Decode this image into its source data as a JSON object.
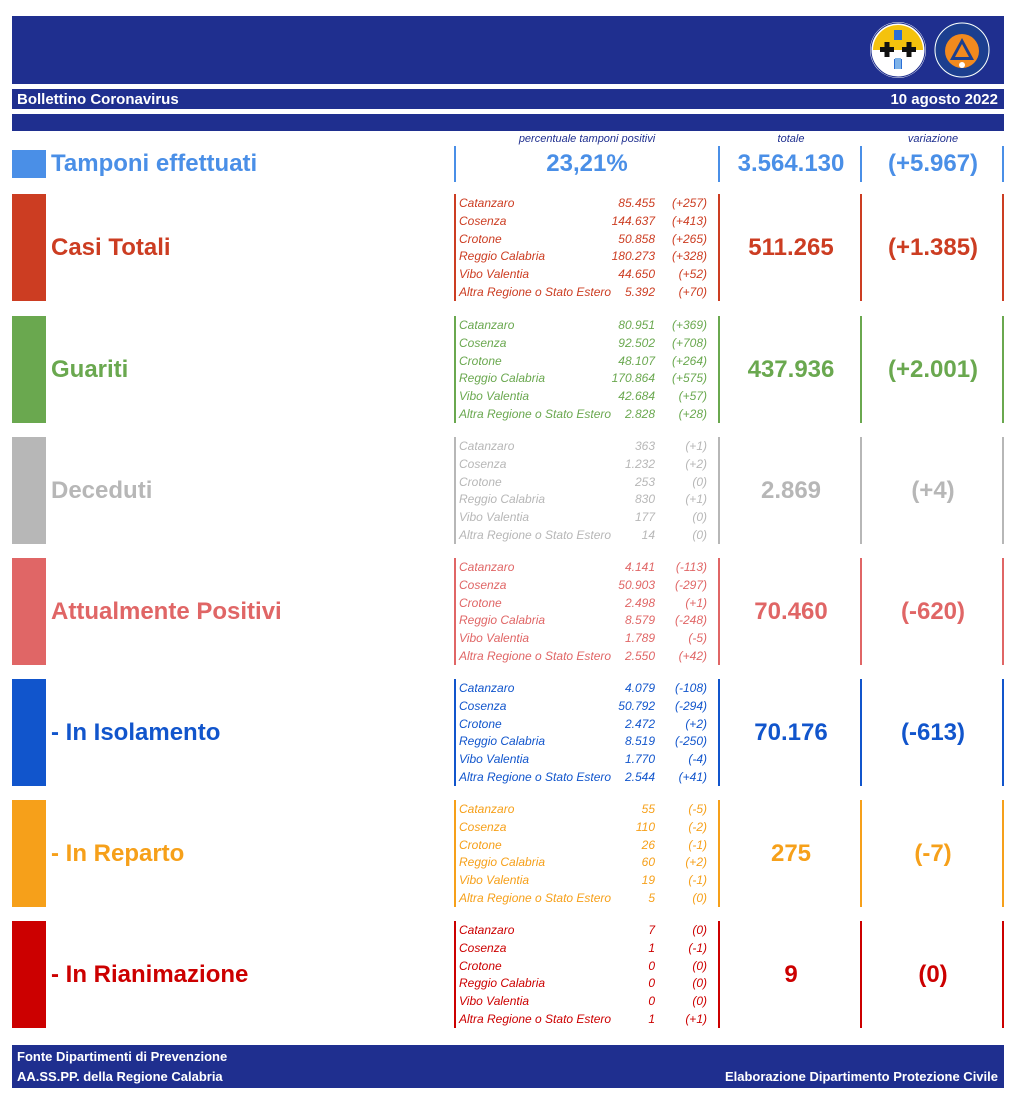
{
  "header": {
    "title": "Bollettino Coronavirus",
    "date": "10 agosto 2022"
  },
  "logos": {
    "region": "regione-calabria-logo-icon",
    "civil": "protezione-civile-logo-icon"
  },
  "columns": {
    "pct_header": "percentuale tamponi positivi",
    "total_header": "totale",
    "variation_header": "variazione"
  },
  "tamponi": {
    "label": "Tamponi effettuati",
    "percent": "23,21%",
    "total": "3.564.130",
    "variation": "(+5.967)",
    "color": "#4a8fe7"
  },
  "categories": [
    {
      "id": "casi-totali",
      "label": "Casi Totali",
      "color": "#cc3d22",
      "total": "511.265",
      "variation": "(+1.385)",
      "rows": [
        {
          "province": "Catanzaro",
          "value": "85.455",
          "delta": "(+257)"
        },
        {
          "province": "Cosenza",
          "value": "144.637",
          "delta": "(+413)"
        },
        {
          "province": "Crotone",
          "value": "50.858",
          "delta": "(+265)"
        },
        {
          "province": "Reggio Calabria",
          "value": "180.273",
          "delta": "(+328)"
        },
        {
          "province": "Vibo Valentia",
          "value": "44.650",
          "delta": "(+52)"
        },
        {
          "province": "Altra Regione o Stato Estero",
          "value": "5.392",
          "delta": "(+70)"
        }
      ]
    },
    {
      "id": "guariti",
      "label": "Guariti",
      "color": "#6aa84f",
      "total": "437.936",
      "variation": "(+2.001)",
      "rows": [
        {
          "province": "Catanzaro",
          "value": "80.951",
          "delta": "(+369)"
        },
        {
          "province": "Cosenza",
          "value": "92.502",
          "delta": "(+708)"
        },
        {
          "province": "Crotone",
          "value": "48.107",
          "delta": "(+264)"
        },
        {
          "province": "Reggio Calabria",
          "value": "170.864",
          "delta": "(+575)"
        },
        {
          "province": "Vibo Valentia",
          "value": "42.684",
          "delta": "(+57)"
        },
        {
          "province": "Altra Regione o Stato Estero",
          "value": "2.828",
          "delta": "(+28)"
        }
      ]
    },
    {
      "id": "deceduti",
      "label": "Deceduti",
      "color": "#b7b7b7",
      "total": "2.869",
      "variation": "(+4)",
      "rows": [
        {
          "province": "Catanzaro",
          "value": "363",
          "delta": "(+1)"
        },
        {
          "province": "Cosenza",
          "value": "1.232",
          "delta": "(+2)"
        },
        {
          "province": "Crotone",
          "value": "253",
          "delta": "(0)"
        },
        {
          "province": "Reggio Calabria",
          "value": "830",
          "delta": "(+1)"
        },
        {
          "province": "Vibo Valentia",
          "value": "177",
          "delta": "(0)"
        },
        {
          "province": "Altra Regione o Stato Estero",
          "value": "14",
          "delta": "(0)"
        }
      ]
    },
    {
      "id": "attualmente-positivi",
      "label": "Attualmente Positivi",
      "color": "#e06666",
      "total": "70.460",
      "variation": "(-620)",
      "rows": [
        {
          "province": "Catanzaro",
          "value": "4.141",
          "delta": "(-113)"
        },
        {
          "province": "Cosenza",
          "value": "50.903",
          "delta": "(-297)"
        },
        {
          "province": "Crotone",
          "value": "2.498",
          "delta": "(+1)"
        },
        {
          "province": "Reggio Calabria",
          "value": "8.579",
          "delta": "(-248)"
        },
        {
          "province": "Vibo Valentia",
          "value": "1.789",
          "delta": "(-5)"
        },
        {
          "province": "Altra Regione o Stato Estero",
          "value": "2.550",
          "delta": "(+42)"
        }
      ]
    },
    {
      "id": "in-isolamento",
      "label": " - In Isolamento",
      "color": "#1155cc",
      "total": "70.176",
      "variation": "(-613)",
      "rows": [
        {
          "province": "Catanzaro",
          "value": "4.079",
          "delta": "(-108)"
        },
        {
          "province": "Cosenza",
          "value": "50.792",
          "delta": "(-294)"
        },
        {
          "province": "Crotone",
          "value": "2.472",
          "delta": "(+2)"
        },
        {
          "province": "Reggio Calabria",
          "value": "8.519",
          "delta": "(-250)"
        },
        {
          "province": "Vibo Valentia",
          "value": "1.770",
          "delta": "(-4)"
        },
        {
          "province": "Altra Regione o Stato Estero",
          "value": "2.544",
          "delta": "(+41)"
        }
      ]
    },
    {
      "id": "in-reparto",
      "label": " - In Reparto",
      "color": "#f6a01a",
      "total": "275",
      "variation": "(-7)",
      "rows": [
        {
          "province": "Catanzaro",
          "value": "55",
          "delta": "(-5)"
        },
        {
          "province": "Cosenza",
          "value": "110",
          "delta": "(-2)"
        },
        {
          "province": "Crotone",
          "value": "26",
          "delta": "(-1)"
        },
        {
          "province": "Reggio Calabria",
          "value": "60",
          "delta": "(+2)"
        },
        {
          "province": "Vibo Valentia",
          "value": "19",
          "delta": "(-1)"
        },
        {
          "province": "Altra Regione o Stato Estero",
          "value": "5",
          "delta": "(0)"
        }
      ]
    },
    {
      "id": "in-rianimazione",
      "label": " - In Rianimazione",
      "color": "#cc0000",
      "total": "9",
      "variation": "(0)",
      "rows": [
        {
          "province": "Catanzaro",
          "value": "7",
          "delta": "(0)"
        },
        {
          "province": "Cosenza",
          "value": "1",
          "delta": "(-1)"
        },
        {
          "province": "Crotone",
          "value": "0",
          "delta": "(0)"
        },
        {
          "province": "Reggio Calabria",
          "value": "0",
          "delta": "(0)"
        },
        {
          "province": "Vibo Valentia",
          "value": "0",
          "delta": "(0)"
        },
        {
          "province": "Altra Regione o Stato Estero",
          "value": "1",
          "delta": "(+1)"
        }
      ]
    }
  ],
  "footer": {
    "line1": "Fonte Dipartimenti di Prevenzione",
    "line2": "AA.SS.PP.  della Regione Calabria",
    "right": "Elaborazione Dipartimento Protezione Civile"
  }
}
